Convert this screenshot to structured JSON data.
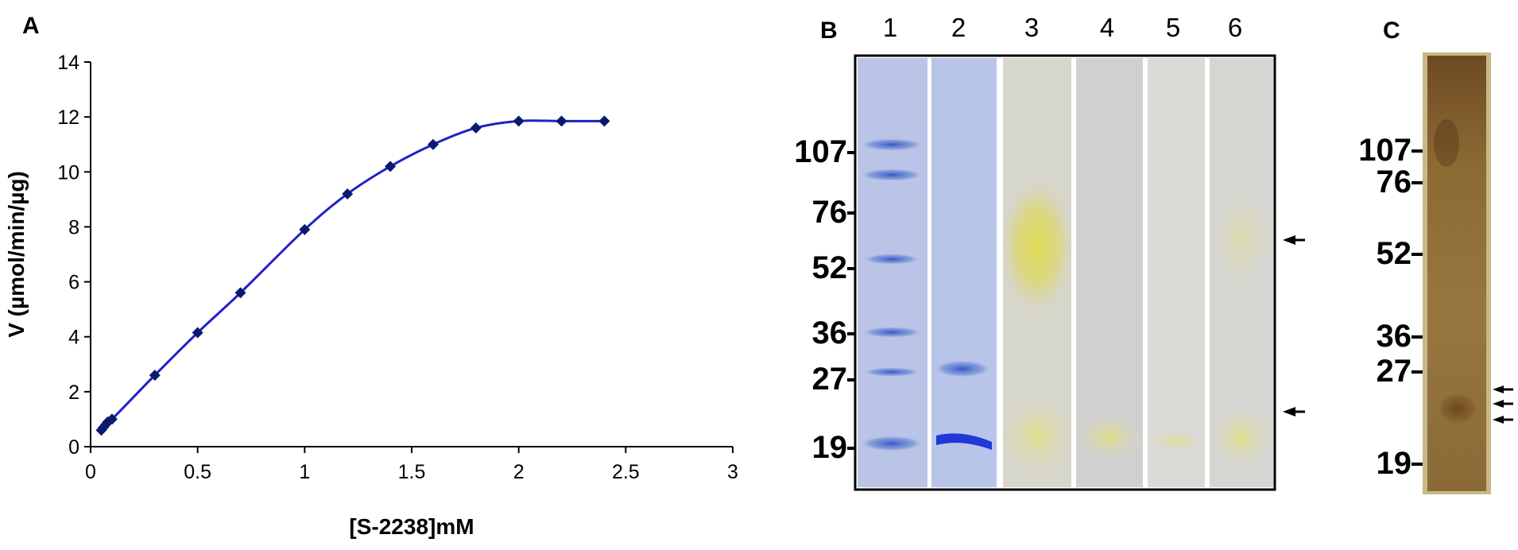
{
  "panels": {
    "a": {
      "letter": "A"
    },
    "b": {
      "letter": "B"
    },
    "c": {
      "letter": "C"
    }
  },
  "chart_data": {
    "type": "line",
    "xlabel": "[S-2238]mM",
    "ylabel": "V (µmol/min/µg)",
    "xlim": [
      0,
      3
    ],
    "ylim": [
      0,
      14
    ],
    "xticks": [
      "0",
      "0.5",
      "1",
      "1.5",
      "2",
      "2.5",
      "3"
    ],
    "yticks": [
      "0",
      "2",
      "4",
      "6",
      "8",
      "10",
      "12",
      "14"
    ],
    "grid": false,
    "series": [
      {
        "color": "#2020c8",
        "marker_color": "#0a1a6e",
        "x": [
          0.05,
          0.06,
          0.07,
          0.08,
          0.1,
          0.3,
          0.5,
          0.7,
          1.0,
          1.2,
          1.4,
          1.6,
          1.8,
          2.0,
          2.2,
          2.4
        ],
        "y": [
          0.6,
          0.7,
          0.8,
          0.9,
          1.0,
          2.6,
          4.15,
          5.6,
          7.9,
          9.2,
          10.2,
          11.0,
          11.6,
          11.85,
          11.85,
          11.85
        ]
      }
    ]
  },
  "gel_b": {
    "lanes": [
      "1",
      "2",
      "3",
      "4",
      "5",
      "6"
    ],
    "mw_markers": [
      "107",
      "76",
      "52",
      "36",
      "27",
      "19"
    ]
  },
  "gel_c": {
    "mw_markers": [
      "107",
      "76",
      "52",
      "36",
      "27",
      "19"
    ]
  }
}
